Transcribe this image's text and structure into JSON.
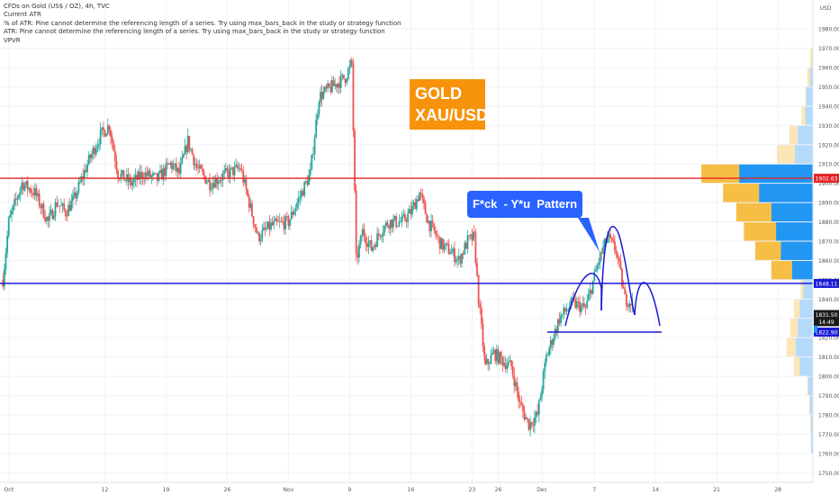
{
  "header": {
    "symbol_line": "CFDs on Gold (US$ / OZ), 4h, TVC",
    "indicators": [
      "Current ATR",
      "% of ATR: Pine cannot determine the referencing length of a series. Try using max_bars_back in the study or strategy function",
      "ATR: Pine cannot determine the referencing length of a series. Try using max_bars_back in the study or strategy function",
      "VPVR"
    ]
  },
  "annotations": {
    "title_box": [
      "GOLD",
      "XAU/USD"
    ],
    "callout": "F*ck  - Y*u  Pattern"
  },
  "colors": {
    "up": "#26a69a",
    "down": "#ef5350",
    "red_line": "#e52222",
    "blue_line": "#1a1ad6",
    "orange": "#f7930a",
    "vp_blue": "#2196f3",
    "vp_yellow": "#f5b731"
  },
  "chart_data": {
    "type": "candlestick",
    "currency": "USD",
    "ylim": [
      1745,
      1995
    ],
    "y_ticks": [
      1750,
      1760,
      1770,
      1780,
      1790,
      1800,
      1810,
      1820,
      1830,
      1840,
      1850,
      1860,
      1870,
      1880,
      1890,
      1900,
      1910,
      1920,
      1930,
      1940,
      1950,
      1960,
      1970,
      1980
    ],
    "x_ticks": [
      "Oct",
      "12",
      "19",
      "26",
      "Nov",
      "9",
      "16",
      "23",
      "26",
      "Dec",
      "7",
      "14",
      "21",
      "28"
    ],
    "x_tick_dates": [
      "2020-10-01",
      "2020-10-12",
      "2020-10-19",
      "2020-10-26",
      "2020-11-02",
      "2020-11-09",
      "2020-11-16",
      "2020-11-23",
      "2020-11-26",
      "2020-12-01",
      "2020-12-07",
      "2020-12-14",
      "2020-12-21",
      "2020-12-28"
    ],
    "x_range": [
      "2020-09-30",
      "2021-01-01"
    ],
    "price_path": [
      {
        "t": "2020-09-30T08:00",
        "p": 1850
      },
      {
        "t": "2020-10-01T00:00",
        "p": 1880
      },
      {
        "t": "2020-10-02T12:00",
        "p": 1900
      },
      {
        "t": "2020-10-04T00:00",
        "p": 1895
      },
      {
        "t": "2020-10-05T12:00",
        "p": 1880
      },
      {
        "t": "2020-10-06T12:00",
        "p": 1890
      },
      {
        "t": "2020-10-07T12:00",
        "p": 1885
      },
      {
        "t": "2020-10-08T12:00",
        "p": 1892
      },
      {
        "t": "2020-10-10T00:00",
        "p": 1910
      },
      {
        "t": "2020-10-11T12:00",
        "p": 1925
      },
      {
        "t": "2020-10-12T12:00",
        "p": 1930
      },
      {
        "t": "2020-10-13T12:00",
        "p": 1905
      },
      {
        "t": "2020-10-15T00:00",
        "p": 1900
      },
      {
        "t": "2020-10-16T12:00",
        "p": 1905
      },
      {
        "t": "2020-10-18T00:00",
        "p": 1902
      },
      {
        "t": "2020-10-19T12:00",
        "p": 1910
      },
      {
        "t": "2020-10-20T12:00",
        "p": 1905
      },
      {
        "t": "2020-10-21T12:00",
        "p": 1922
      },
      {
        "t": "2020-10-22T12:00",
        "p": 1908
      },
      {
        "t": "2020-10-24T00:00",
        "p": 1900
      },
      {
        "t": "2020-10-26T00:00",
        "p": 1905
      },
      {
        "t": "2020-10-27T12:00",
        "p": 1908
      },
      {
        "t": "2020-10-28T12:00",
        "p": 1890
      },
      {
        "t": "2020-10-29T12:00",
        "p": 1872
      },
      {
        "t": "2020-10-31T00:00",
        "p": 1878
      },
      {
        "t": "2020-11-02T00:00",
        "p": 1880
      },
      {
        "t": "2020-11-03T12:00",
        "p": 1895
      },
      {
        "t": "2020-11-04T12:00",
        "p": 1905
      },
      {
        "t": "2020-11-05T12:00",
        "p": 1945
      },
      {
        "t": "2020-11-07T00:00",
        "p": 1950
      },
      {
        "t": "2020-11-08T12:00",
        "p": 1955
      },
      {
        "t": "2020-11-09T06:00",
        "p": 1962
      },
      {
        "t": "2020-11-09T18:00",
        "p": 1860
      },
      {
        "t": "2020-11-10T12:00",
        "p": 1875
      },
      {
        "t": "2020-11-11T12:00",
        "p": 1866
      },
      {
        "t": "2020-11-12T12:00",
        "p": 1875
      },
      {
        "t": "2020-11-13T12:00",
        "p": 1880
      },
      {
        "t": "2020-11-15T00:00",
        "p": 1880
      },
      {
        "t": "2020-11-16T00:00",
        "p": 1885
      },
      {
        "t": "2020-11-17T00:00",
        "p": 1895
      },
      {
        "t": "2020-11-18T00:00",
        "p": 1880
      },
      {
        "t": "2020-11-19T12:00",
        "p": 1868
      },
      {
        "t": "2020-11-20T12:00",
        "p": 1865
      },
      {
        "t": "2020-11-21T12:00",
        "p": 1860
      },
      {
        "t": "2020-11-22T12:00",
        "p": 1870
      },
      {
        "t": "2020-11-23T06:00",
        "p": 1872
      },
      {
        "t": "2020-11-23T18:00",
        "p": 1840
      },
      {
        "t": "2020-11-24T12:00",
        "p": 1805
      },
      {
        "t": "2020-11-25T12:00",
        "p": 1812
      },
      {
        "t": "2020-11-26T12:00",
        "p": 1808
      },
      {
        "t": "2020-11-27T12:00",
        "p": 1805
      },
      {
        "t": "2020-11-28T12:00",
        "p": 1785
      },
      {
        "t": "2020-11-29T12:00",
        "p": 1775
      },
      {
        "t": "2020-11-30T12:00",
        "p": 1780
      },
      {
        "t": "2020-12-01T12:00",
        "p": 1810
      },
      {
        "t": "2020-12-03T00:00",
        "p": 1830
      },
      {
        "t": "2020-12-04T12:00",
        "p": 1838
      },
      {
        "t": "2020-12-06T00:00",
        "p": 1835
      },
      {
        "t": "2020-12-07T12:00",
        "p": 1860
      },
      {
        "t": "2020-12-08T12:00",
        "p": 1872
      },
      {
        "t": "2020-12-09T12:00",
        "p": 1865
      },
      {
        "t": "2020-12-10T12:00",
        "p": 1840
      },
      {
        "t": "2020-12-11T12:00",
        "p": 1838
      }
    ],
    "horizontal_lines": [
      {
        "price": 1902.63,
        "color": "#e52222",
        "label": "1902.63"
      },
      {
        "price": 1848.11,
        "color": "#1a1ad6",
        "label": "1848.11"
      },
      {
        "price": 1822.9,
        "color": "#1a1ad6",
        "label": "1822.90"
      }
    ],
    "price_labels": [
      {
        "label": "1831.50",
        "sub": "14:49",
        "price": 1832,
        "color": "#1a1a1a"
      },
      {
        "label": "",
        "sub": "",
        "price": 1830,
        "color": "#2196f3"
      }
    ],
    "volume_profile": [
      {
        "price_low": 1900,
        "price_high": 1910,
        "up": 40,
        "down": 78
      },
      {
        "price_low": 1890,
        "price_high": 1900,
        "up": 38,
        "down": 57
      },
      {
        "price_low": 1880,
        "price_high": 1890,
        "up": 37,
        "down": 44
      },
      {
        "price_low": 1870,
        "price_high": 1880,
        "up": 34,
        "down": 39
      },
      {
        "price_low": 1860,
        "price_high": 1870,
        "up": 27,
        "down": 34
      },
      {
        "price_low": 1850,
        "price_high": 1860,
        "up": 22,
        "down": 22
      },
      {
        "price_low": 1910,
        "price_high": 1920,
        "up": 19,
        "down": 19
      },
      {
        "price_low": 1920,
        "price_high": 1930,
        "up": 9,
        "down": 16
      },
      {
        "price_low": 1930,
        "price_high": 1940,
        "up": 4,
        "down": 8
      },
      {
        "price_low": 1940,
        "price_high": 1950,
        "up": 1,
        "down": 7
      },
      {
        "price_low": 1950,
        "price_high": 1960,
        "up": 3,
        "down": 3
      },
      {
        "price_low": 1960,
        "price_high": 1970,
        "up": 2,
        "down": 1
      },
      {
        "price_low": 1840,
        "price_high": 1850,
        "up": 3,
        "down": 10
      },
      {
        "price_low": 1830,
        "price_high": 1840,
        "up": 6,
        "down": 14
      },
      {
        "price_low": 1820,
        "price_high": 1830,
        "up": 8,
        "down": 16
      },
      {
        "price_low": 1810,
        "price_high": 1820,
        "up": 10,
        "down": 18
      },
      {
        "price_low": 1800,
        "price_high": 1810,
        "up": 6,
        "down": 14
      },
      {
        "price_low": 1790,
        "price_high": 1800,
        "up": 1,
        "down": 5
      },
      {
        "price_low": 1780,
        "price_high": 1790,
        "up": 1,
        "down": 3
      },
      {
        "price_low": 1770,
        "price_high": 1780,
        "up": 1,
        "down": 2
      },
      {
        "price_low": 1760,
        "price_high": 1770,
        "up": 0,
        "down": 2
      }
    ]
  }
}
